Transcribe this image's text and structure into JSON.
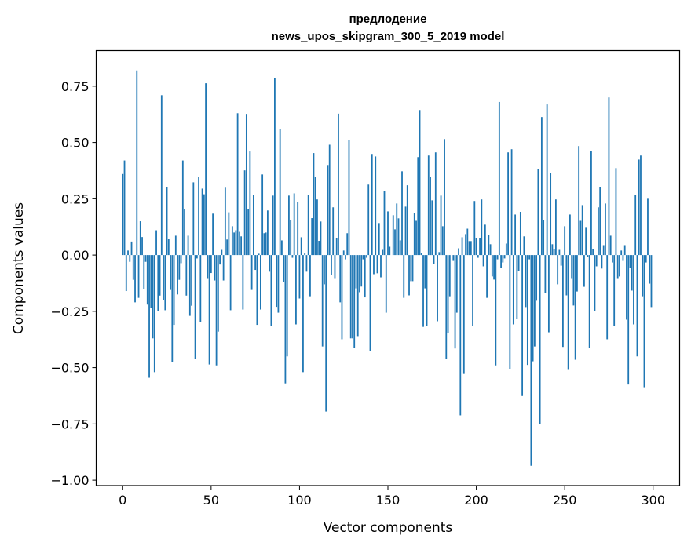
{
  "chart_data": {
    "type": "bar",
    "title": [
      "предлодение",
      "news_upos_skipgram_300_5_2019 model"
    ],
    "xlabel": "Vector components",
    "ylabel": "Components values",
    "xlim": [
      -15,
      315
    ],
    "ylim": [
      -1.024,
      0.908
    ],
    "xticks": [
      0,
      50,
      100,
      150,
      200,
      250,
      300
    ],
    "xtick_labels": [
      "0",
      "50",
      "100",
      "150",
      "200",
      "250",
      "300"
    ],
    "yticks": [
      0.75,
      0.5,
      0.25,
      0,
      -0.25,
      -0.5,
      -0.75,
      -1.0
    ],
    "ytick_labels": [
      "0.75",
      "0.50",
      "0.25",
      "0.00",
      "−0.25",
      "−0.50",
      "−0.75",
      "−1.00"
    ],
    "grid": false,
    "bar_width": 0.8,
    "color": "#1f77b4",
    "values": [
      0.36,
      0.42,
      -0.16,
      0.02,
      -0.03,
      0.06,
      -0.11,
      -0.21,
      0.82,
      -0.19,
      0.15,
      0.08,
      -0.15,
      -0.03,
      -0.22,
      -0.545,
      -0.235,
      -0.37,
      -0.52,
      0.11,
      -0.25,
      -0.18,
      0.71,
      -0.2,
      -0.245,
      0.3,
      0.07,
      -0.155,
      -0.475,
      -0.31,
      0.086,
      -0.175,
      -0.11,
      -0.036,
      0.42,
      0.205,
      -0.18,
      0.086,
      -0.27,
      -0.225,
      0.323,
      -0.46,
      -0.015,
      0.348,
      -0.298,
      0.295,
      0.27,
      0.763,
      -0.106,
      -0.486,
      -0.08,
      0.184,
      -0.113,
      -0.49,
      -0.34,
      -0.042,
      0.023,
      -0.113,
      0.299,
      0.069,
      0.19,
      -0.245,
      0.128,
      0.1,
      0.11,
      0.63,
      0.103,
      0.083,
      -0.242,
      0.376,
      0.627,
      0.205,
      0.46,
      -0.155,
      0.267,
      -0.066,
      -0.31,
      0.006,
      -0.242,
      0.358,
      0.097,
      0.1,
      0.198,
      -0.074,
      -0.315,
      0.264,
      0.787,
      -0.23,
      -0.256,
      0.56,
      0.065,
      -0.12,
      -0.57,
      -0.45,
      0.264,
      0.156,
      -0.012,
      0.274,
      -0.308,
      0.236,
      -0.193,
      0.079,
      -0.52,
      0.009,
      -0.074,
      0.268,
      -0.183,
      0.164,
      0.453,
      0.348,
      0.247,
      0.063,
      0.149,
      -0.406,
      -0.13,
      -0.695,
      0.4,
      0.49,
      -0.088,
      0.212,
      -0.106,
      0.076,
      0.628,
      -0.21,
      -0.374,
      0.02,
      -0.019,
      0.097,
      0.512,
      -0.37,
      -0.37,
      -0.413,
      -0.148,
      -0.36,
      -0.165,
      -0.14,
      -0.019,
      -0.188,
      -0.012,
      0.313,
      -0.427,
      0.449,
      -0.085,
      0.438,
      -0.081,
      0.142,
      -0.099,
      0.023,
      0.285,
      -0.256,
      0.194,
      0.037,
      0.0,
      0.177,
      0.114,
      0.229,
      0.163,
      0.065,
      0.372,
      -0.19,
      0.215,
      0.31,
      -0.179,
      -0.116,
      -0.116,
      0.187,
      0.152,
      0.435,
      0.644,
      0.009,
      -0.319,
      -0.148,
      -0.315,
      0.442,
      0.348,
      0.243,
      -0.04,
      0.456,
      -0.294,
      0.013,
      0.264,
      0.128,
      0.515,
      -0.462,
      -0.347,
      -0.183,
      0.0,
      -0.026,
      -0.415,
      -0.256,
      0.03,
      -0.712,
      0.079,
      -0.528,
      0.093,
      0.117,
      0.062,
      0.062,
      -0.315,
      0.24,
      0.076,
      -0.012,
      0.076,
      0.247,
      -0.05,
      0.135,
      -0.19,
      0.09,
      0.048,
      -0.095,
      -0.109,
      -0.49,
      -0.019,
      0.68,
      -0.057,
      -0.033,
      -0.015,
      0.051,
      0.456,
      -0.507,
      0.47,
      -0.308,
      0.18,
      -0.284,
      -0.071,
      0.192,
      -0.626,
      0.083,
      -0.231,
      -0.488,
      -0.019,
      -0.936,
      -0.472,
      -0.406,
      -0.203,
      0.383,
      -0.75,
      0.613,
      0.156,
      -0.169,
      0.669,
      -0.343,
      0.365,
      0.048,
      0.027,
      0.247,
      -0.13,
      0.023,
      -0.047,
      -0.408,
      0.128,
      -0.179,
      -0.51,
      0.18,
      -0.106,
      -0.224,
      -0.465,
      -0.162,
      0.484,
      0.152,
      0.222,
      -0.141,
      0.121,
      -0.008,
      -0.413,
      0.463,
      0.027,
      -0.249,
      -0.05,
      0.212,
      0.302,
      -0.06,
      0.044,
      0.229,
      -0.374,
      0.7,
      0.086,
      -0.033,
      -0.315,
      0.386,
      -0.106,
      -0.095,
      0.02,
      -0.026,
      0.044,
      -0.287,
      -0.575,
      -0.057,
      -0.158,
      -0.308,
      0.267,
      -0.45,
      0.424,
      0.442,
      -0.183,
      -0.587,
      -0.033,
      0.25,
      -0.127,
      -0.231
    ]
  }
}
